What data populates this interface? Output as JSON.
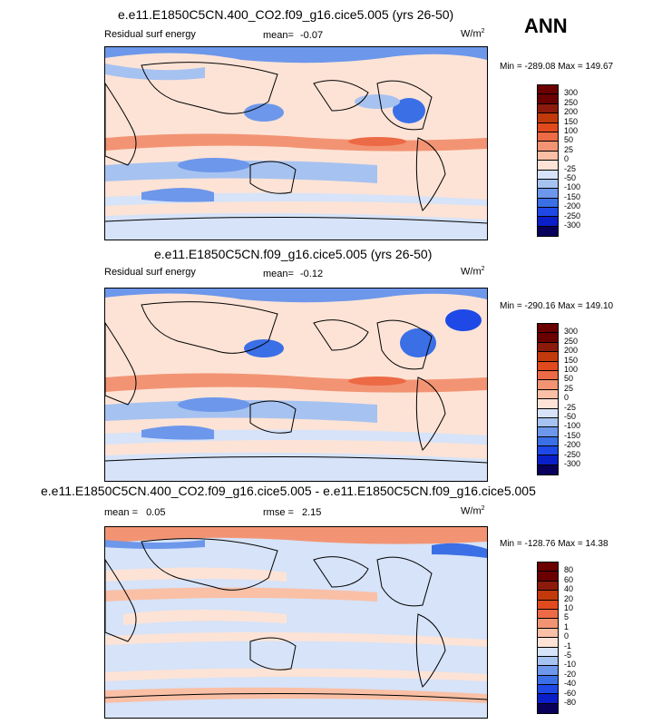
{
  "season": "ANN",
  "colors": {
    "abs_scale": [
      "#08005a",
      "#0a1fc8",
      "#1e49e6",
      "#3a6fe6",
      "#6d97ea",
      "#a6c2f0",
      "#d6e3f8",
      "#fde3d6",
      "#f9c0a6",
      "#f29474",
      "#ec6a45",
      "#e04a1d",
      "#c23a0b",
      "#8c1b0c",
      "#6a0000"
    ],
    "diff_scale": [
      "#08005a",
      "#0a1fc8",
      "#1e49e6",
      "#3a6fe6",
      "#6d97ea",
      "#a6c2f0",
      "#d6e3f8",
      "#fde3d6",
      "#f9c0a6",
      "#f29474",
      "#ec6a45",
      "#e04a1d",
      "#c23a0b",
      "#8c1b0c",
      "#6a0000"
    ]
  },
  "chart_data": [
    {
      "type": "contour-map",
      "title": "e.e11.E1850C5CN.400_CO2.f09_g16.cice5.005 (yrs 26-50)",
      "variable": "Residual surf energy",
      "mean_label": "mean=",
      "mean": "-0.07",
      "units": "W/m",
      "units_sup": "2",
      "min_label": "Min =",
      "min": "-289.08",
      "max_label": "Max =",
      "max": "149.67",
      "levels": [
        "300",
        "250",
        "200",
        "150",
        "100",
        "50",
        "25",
        "0",
        "-25",
        "-50",
        "-100",
        "-150",
        "-200",
        "-250",
        "-300"
      ]
    },
    {
      "type": "contour-map",
      "title": "e.e11.E1850C5CN.f09_g16.cice5.005 (yrs 26-50)",
      "variable": "Residual surf energy",
      "mean_label": "mean=",
      "mean": "-0.12",
      "units": "W/m",
      "units_sup": "2",
      "min_label": "Min =",
      "min": "-290.16",
      "max_label": "Max =",
      "max": "149.10",
      "levels": [
        "300",
        "250",
        "200",
        "150",
        "100",
        "50",
        "25",
        "0",
        "-25",
        "-50",
        "-100",
        "-150",
        "-200",
        "-250",
        "-300"
      ]
    },
    {
      "type": "contour-map",
      "title": "e.e11.E1850C5CN.400_CO2.f09_g16.cice5.005 - e.e11.E1850C5CN.f09_g16.cice5.005",
      "mean_label": "mean =",
      "mean": "0.05",
      "rmse_label": "rmse =",
      "rmse": "2.15",
      "units": "W/m",
      "units_sup": "2",
      "min_label": "Min =",
      "min": "-128.76",
      "max_label": "Max =",
      "max": "14.38",
      "levels": [
        "80",
        "60",
        "40",
        "20",
        "10",
        "5",
        "1",
        "0",
        "-1",
        "-5",
        "-10",
        "-20",
        "-40",
        "-60",
        "-80"
      ]
    }
  ]
}
